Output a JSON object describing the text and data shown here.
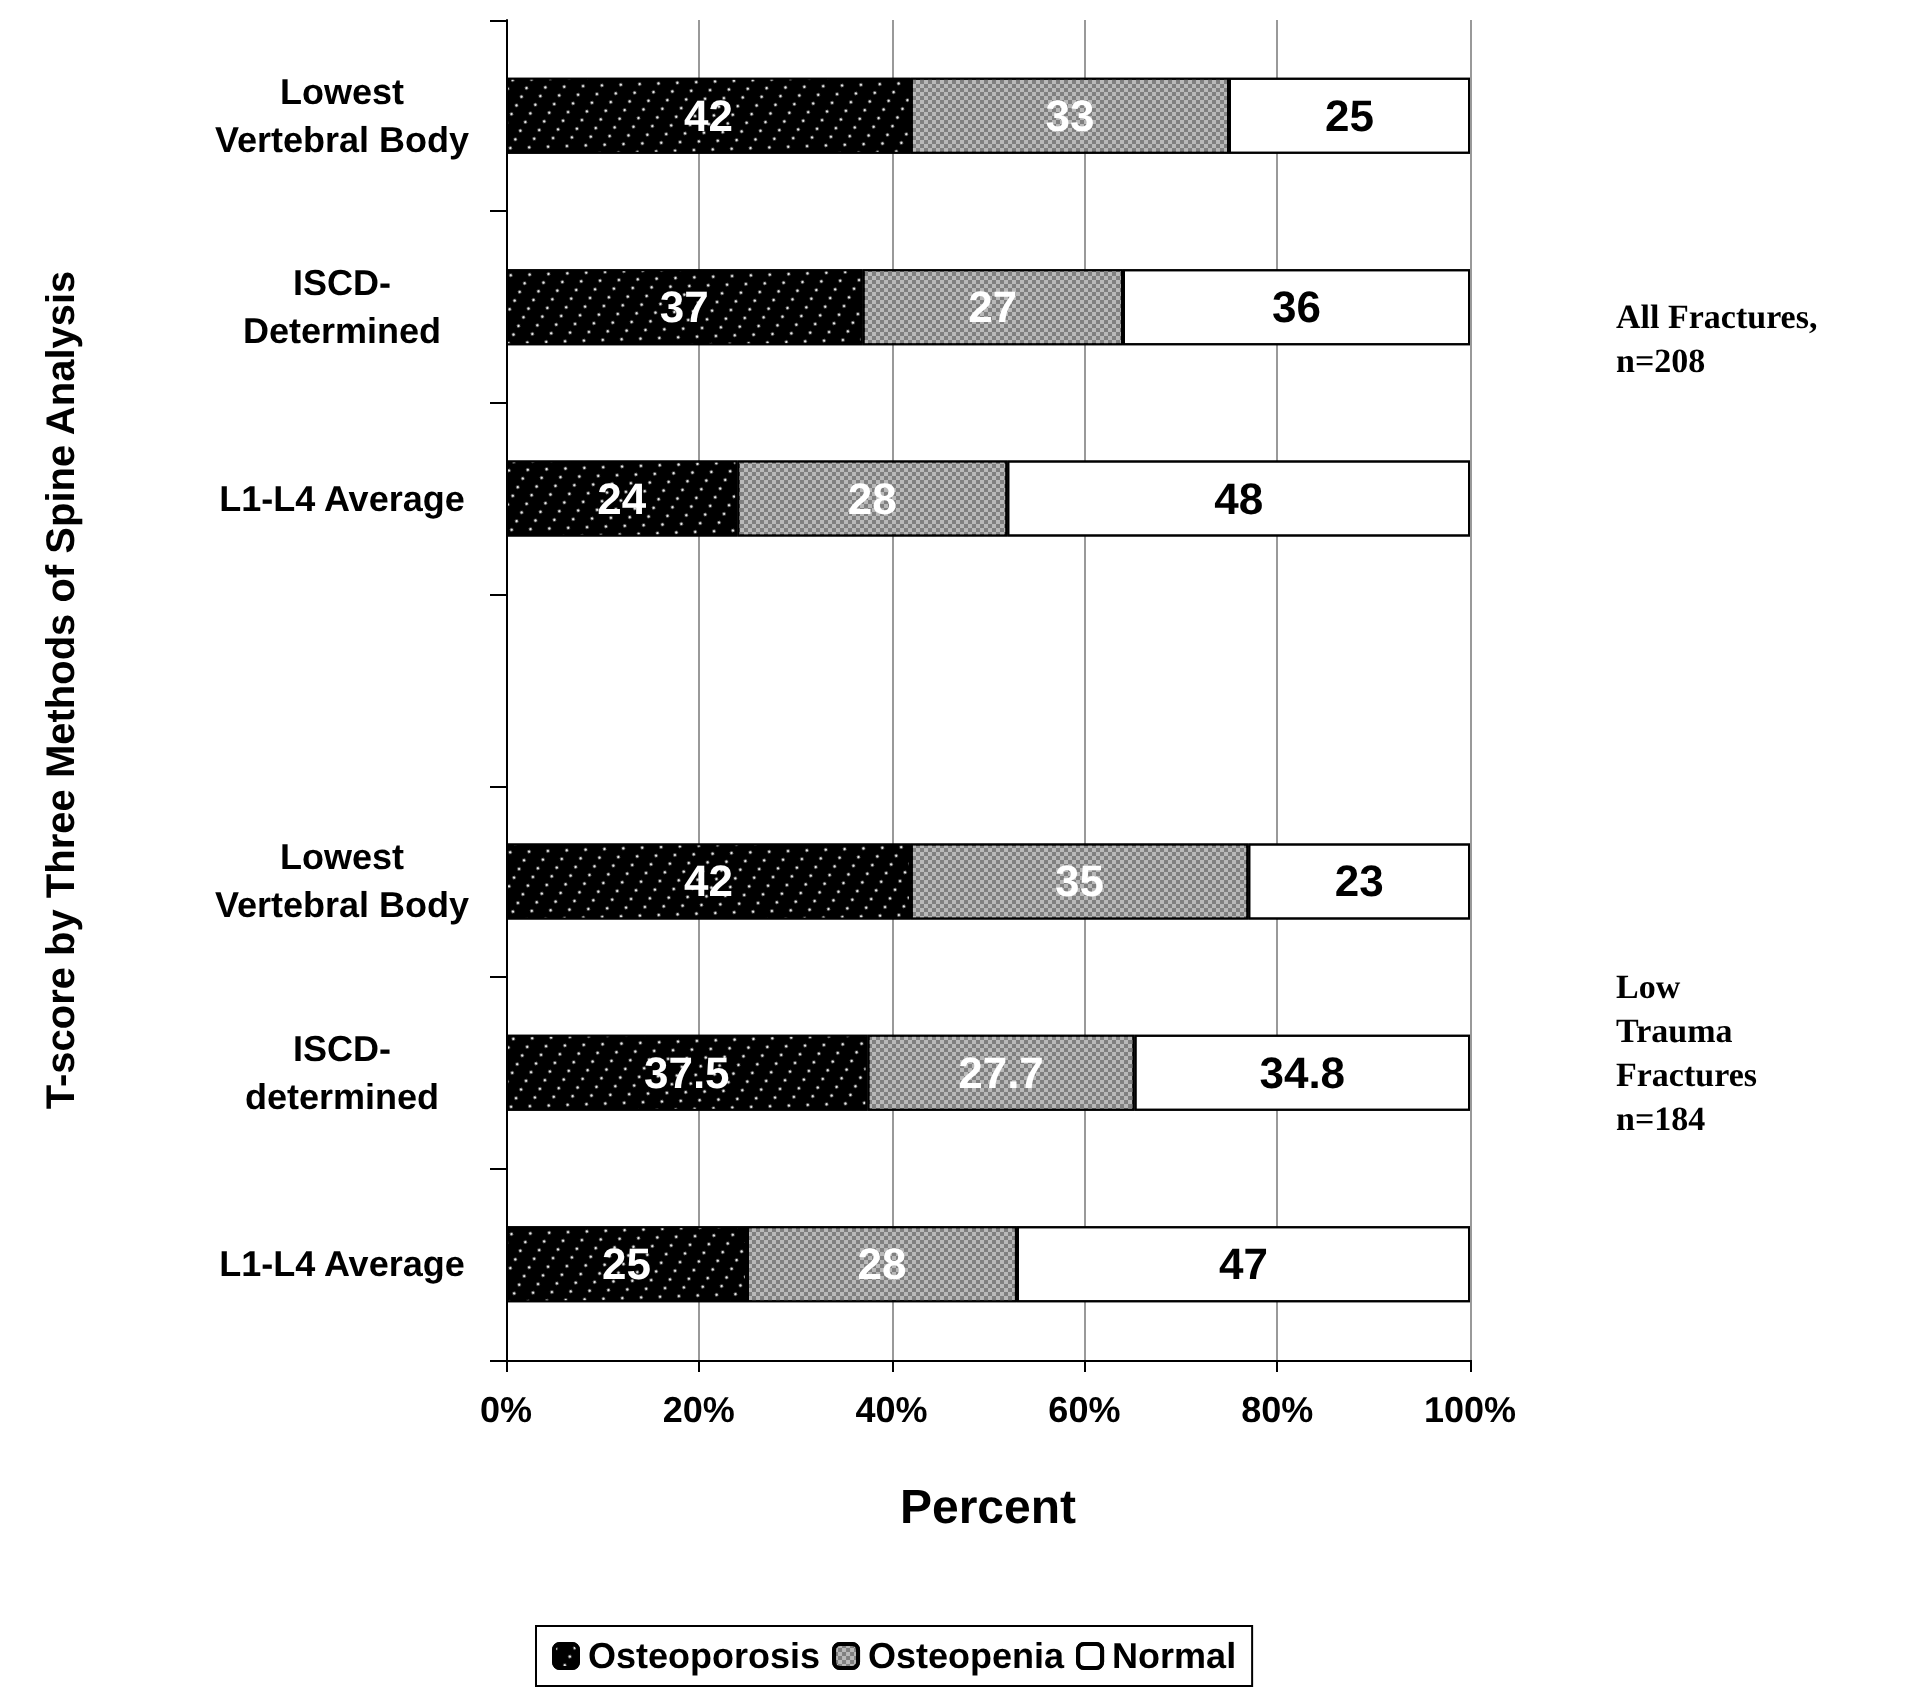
{
  "chart_data": {
    "type": "bar",
    "orientation": "horizontal",
    "stacked": true,
    "categories": [
      "Lowest\nVertebral Body",
      "ISCD-\nDetermined",
      "L1-L4 Average",
      null,
      "Lowest\nVertebral Body",
      "ISCD-\ndetermined",
      "L1-L4 Average"
    ],
    "series": [
      {
        "name": "Osteoporosis",
        "color": "#000000",
        "values": [
          42,
          37,
          24,
          null,
          42,
          37.5,
          25
        ]
      },
      {
        "name": "Osteopenia",
        "color": "#808080",
        "values": [
          33,
          27,
          28,
          null,
          35,
          27.7,
          28
        ]
      },
      {
        "name": "Normal",
        "color": "#ffffff",
        "values": [
          25,
          36,
          48,
          null,
          23,
          34.8,
          47
        ]
      }
    ],
    "xlim": [
      0,
      100
    ],
    "xticks": [
      {
        "value": 0,
        "label": "0%"
      },
      {
        "value": 20,
        "label": "20%"
      },
      {
        "value": 40,
        "label": "40%"
      },
      {
        "value": 60,
        "label": "60%"
      },
      {
        "value": 80,
        "label": "80%"
      },
      {
        "value": 100,
        "label": "100%"
      }
    ],
    "xlabel": "Percent",
    "ylabel": "T-score by Three Methods of Spine Analysis",
    "annotations": [
      "All Fractures,\nn=208",
      "Low\nTrauma\nFractures\nn=184"
    ],
    "data_labels": true,
    "grid": "x",
    "legend": "bottom"
  }
}
